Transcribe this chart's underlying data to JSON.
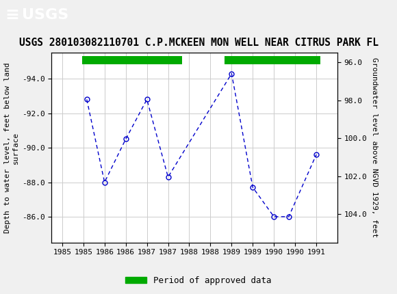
{
  "title": "USGS 280103082110701 C.P.MCKEEN MON WELL NEAR CITRUS PARK FL",
  "ylabel_left": "Depth to water level, feet below land\nsurface",
  "ylabel_right": "Groundwater level above NGVD 1929, feet",
  "background_color": "#f0f0f0",
  "plot_bg_color": "#ffffff",
  "line_color": "#0000cc",
  "marker_color": "#0000cc",
  "approved_bar_color": "#00aa00",
  "x_data": [
    1985.58,
    1986.0,
    1986.5,
    1987.0,
    1987.5,
    1989.0,
    1989.5,
    1990.0,
    1990.35,
    1991.0
  ],
  "y_data": [
    -92.8,
    -88.0,
    -90.5,
    -92.8,
    -88.3,
    -94.3,
    -87.7,
    -86.0,
    -86.0,
    -89.6
  ],
  "ylim_left": [
    -95.5,
    -84.5
  ],
  "ylim_right": [
    95.5,
    105.5
  ],
  "xlim": [
    1984.75,
    1991.5
  ],
  "yticks_left": [
    -94.0,
    -92.0,
    -90.0,
    -88.0,
    -86.0
  ],
  "yticks_right": [
    96.0,
    98.0,
    100.0,
    102.0,
    104.0
  ],
  "xticks": [
    1985,
    1985.5,
    1986,
    1986.5,
    1987,
    1987.5,
    1988,
    1988.5,
    1989,
    1989.5,
    1990,
    1990.5,
    1991
  ],
  "xtick_labels": [
    "1985",
    "1985",
    "1986",
    "1986",
    "1987",
    "1987",
    "1988",
    "1988",
    "1989",
    "1989",
    "1990",
    "1990",
    "1991"
  ],
  "approved_bars": [
    {
      "x_start": 1985.47,
      "x_end": 1987.83
    },
    {
      "x_start": 1988.83,
      "x_end": 1991.1
    }
  ],
  "legend_label": "Period of approved data",
  "usgs_green": "#1a6b3c",
  "title_fontsize": 10.5,
  "axis_label_fontsize": 8,
  "tick_fontsize": 8
}
